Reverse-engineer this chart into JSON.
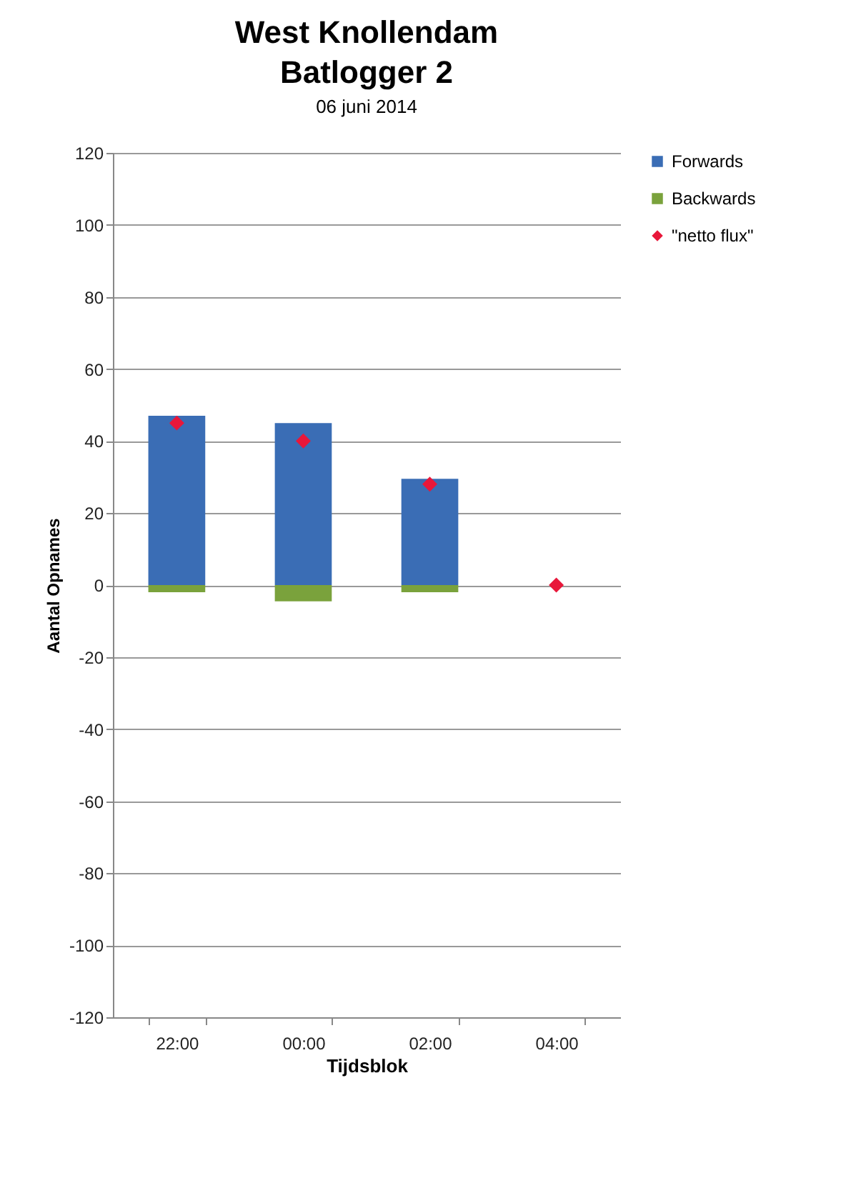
{
  "chart_data": {
    "type": "bar",
    "title": "West Knollendam Batlogger 2",
    "subtitle": "06 juni 2014",
    "xlabel": "Tijdsblok",
    "ylabel": "Aantal Opnames",
    "categories": [
      "22:00",
      "00:00",
      "02:00",
      "04:00"
    ],
    "stacked": true,
    "series": [
      {
        "name": "Forwards",
        "color": "#3a6db5",
        "values": [
          47,
          45,
          29.5,
          0
        ]
      },
      {
        "name": "Backwards",
        "color": "#7aa23c",
        "values": [
          -2,
          -4.5,
          -2,
          0
        ]
      },
      {
        "name": "\"netto flux\"",
        "type": "scatter",
        "marker": "diamond",
        "color": "#e8173a",
        "values": [
          45,
          40,
          28,
          0
        ]
      }
    ],
    "ylim": [
      -120,
      120
    ],
    "yticks": [
      -120,
      -100,
      -80,
      -60,
      -40,
      -20,
      0,
      20,
      40,
      60,
      80,
      100,
      120
    ],
    "grid": "y",
    "legend": "right"
  }
}
